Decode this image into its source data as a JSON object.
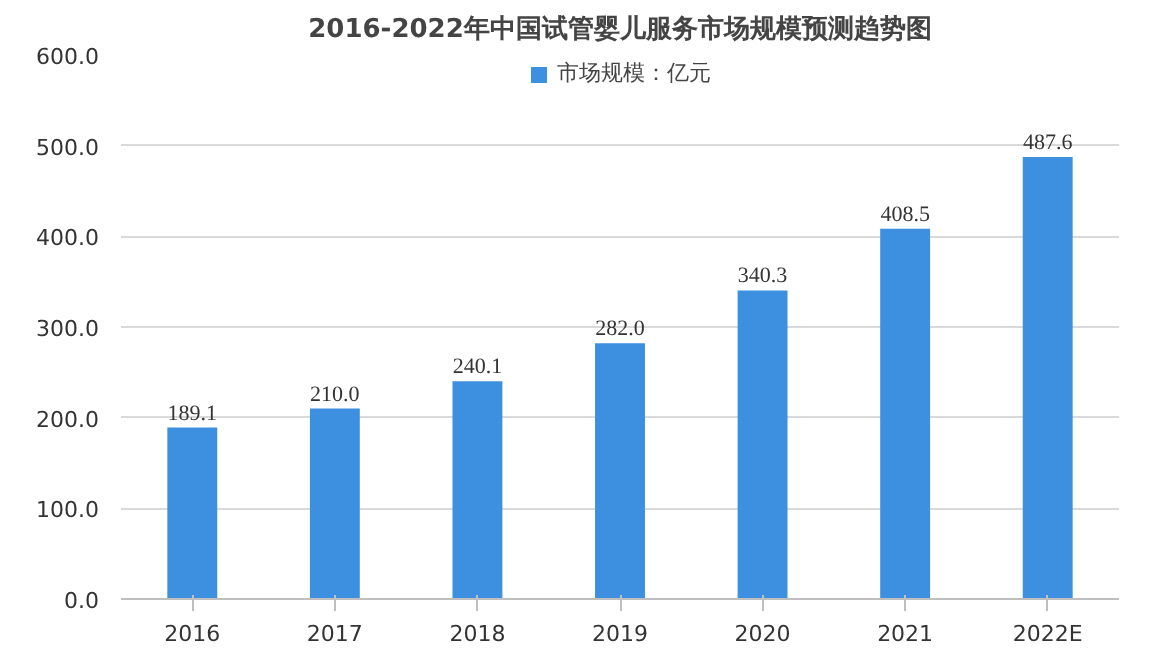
{
  "chart_data": {
    "type": "bar",
    "title": "2016-2022年中国试管婴儿服务市场规模预测趋势图",
    "categories": [
      "2016",
      "2017",
      "2018",
      "2019",
      "2020",
      "2021",
      "2022E"
    ],
    "series": [
      {
        "name": "市场规模：亿元",
        "color": "#3d8fe0",
        "values": [
          189.1,
          210.0,
          240.1,
          282.0,
          340.3,
          408.5,
          487.6
        ],
        "value_labels": [
          "189.1",
          "210.0",
          "240.1",
          "282.0",
          "340.3",
          "408.5",
          "487.6"
        ]
      }
    ],
    "ylim": [
      0,
      600
    ],
    "yticks": [
      {
        "value": 0,
        "label": "0.0"
      },
      {
        "value": 100,
        "label": "100.0"
      },
      {
        "value": 200,
        "label": "200.0"
      },
      {
        "value": 300,
        "label": "300.0"
      },
      {
        "value": 400,
        "label": "400.0"
      },
      {
        "value": 500,
        "label": "500.0"
      },
      {
        "value": 600,
        "label": "600.0"
      }
    ],
    "grid": "y",
    "legend": "top"
  }
}
